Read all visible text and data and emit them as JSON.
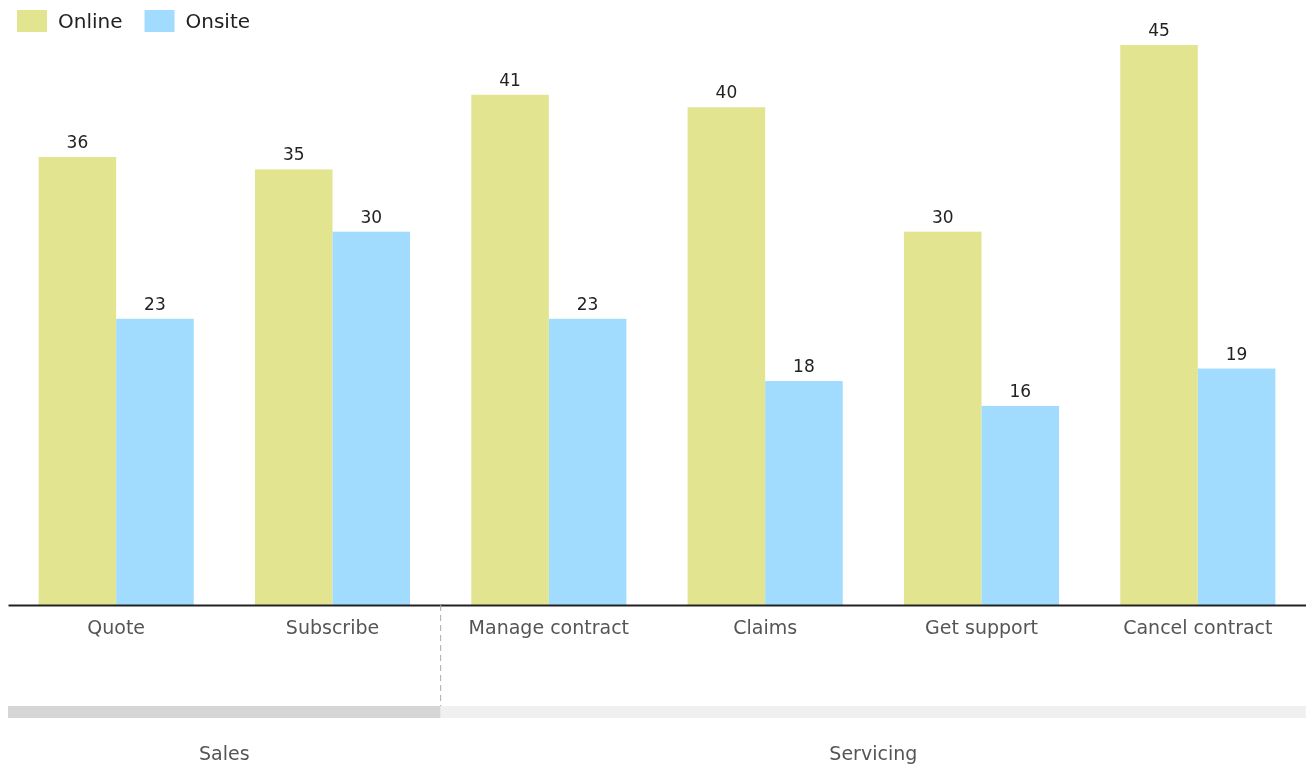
{
  "chart_data": {
    "type": "bar",
    "categories": [
      "Quote",
      "Subscribe",
      "Manage contract",
      "Claims",
      "Get support",
      "Cancel contract"
    ],
    "series": [
      {
        "name": "Online",
        "color": "#e3e48f",
        "values": [
          36,
          35,
          41,
          40,
          30,
          45
        ]
      },
      {
        "name": "Onsite",
        "color": "#a1dcfe",
        "values": [
          23,
          30,
          23,
          18,
          16,
          19
        ]
      }
    ],
    "data_labels": true,
    "legend": "top left",
    "annotations": [
      "Sales",
      "Servicing"
    ]
  }
}
